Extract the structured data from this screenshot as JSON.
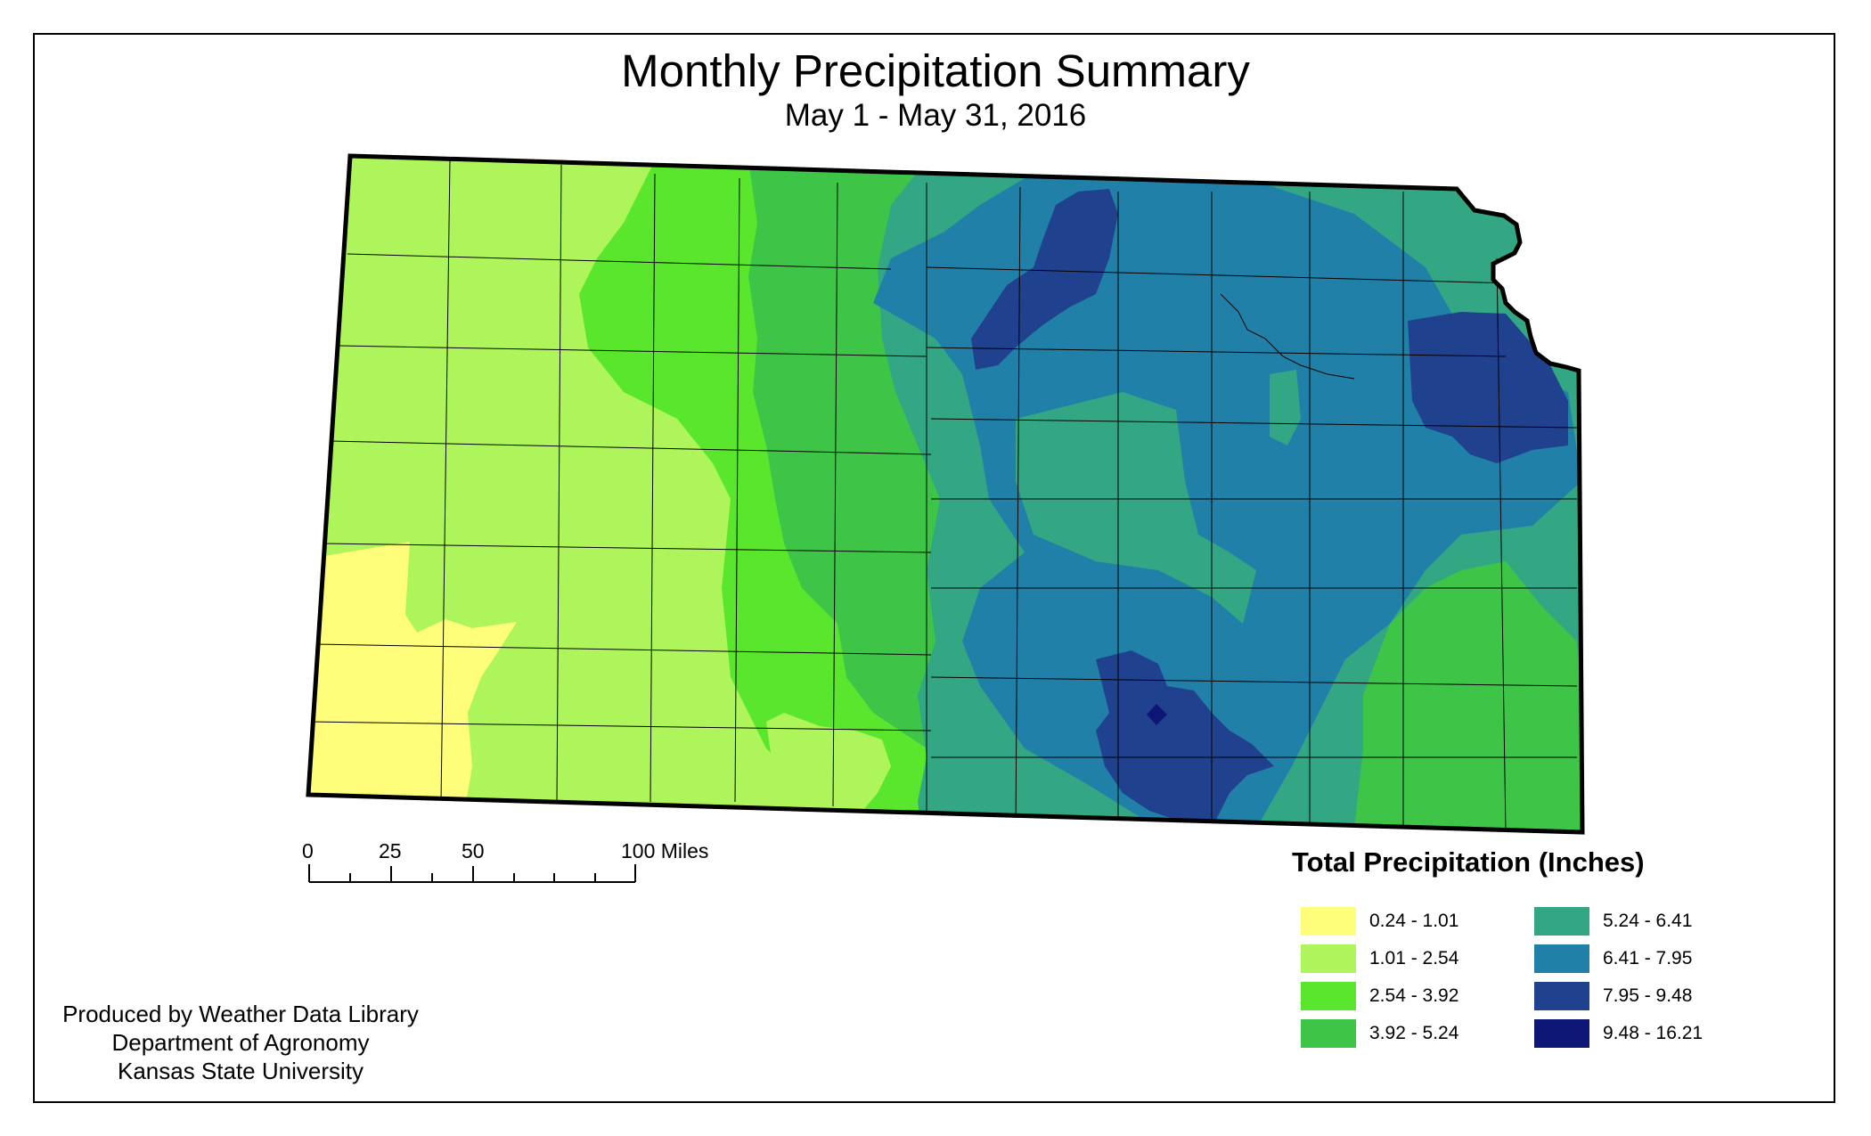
{
  "title": "Monthly Precipitation Summary",
  "subtitle": "May 1 - May 31, 2016",
  "scale_bar": {
    "labels": [
      "0",
      "25",
      "50",
      "100 Miles"
    ]
  },
  "legend": {
    "title": "Total Precipitation (Inches)",
    "items": [
      {
        "label": "0.24 - 1.01",
        "color": "#fefe7a"
      },
      {
        "label": "1.01 - 2.54",
        "color": "#adf55a"
      },
      {
        "label": "2.54 - 3.92",
        "color": "#59e62d"
      },
      {
        "label": "3.92 - 5.24",
        "color": "#3ec548"
      },
      {
        "label": "5.24 - 6.41",
        "color": "#33a784"
      },
      {
        "label": "6.41 - 7.95",
        "color": "#2180a8"
      },
      {
        "label": "7.95 - 9.48",
        "color": "#20418e"
      },
      {
        "label": "9.48 - 16.21",
        "color": "#0e1675"
      }
    ]
  },
  "credits": {
    "line1": "Produced by Weather Data Library",
    "line2": "Department of Agronomy",
    "line3": "Kansas State University"
  }
}
